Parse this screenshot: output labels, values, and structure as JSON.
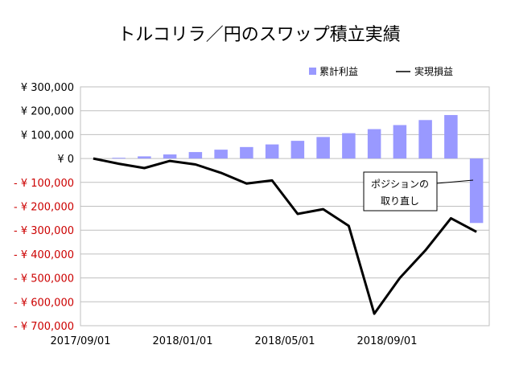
{
  "chart_data": {
    "type": "bar",
    "title": "トルコリラ／円のスワップ積立実績",
    "xlabel": "",
    "ylabel": "",
    "ylim": [
      -700000,
      300000
    ],
    "yticks": [
      300000,
      200000,
      100000,
      0,
      -100000,
      -200000,
      -300000,
      -400000,
      -500000,
      -600000,
      -700000
    ],
    "ytick_labels": [
      "¥ 300,000",
      "¥ 200,000",
      "¥ 100,000",
      "¥ 0",
      "- ¥ 100,000",
      "- ¥ 200,000",
      "- ¥ 300,000",
      "- ¥ 400,000",
      "- ¥ 500,000",
      "- ¥ 600,000",
      "- ¥ 700,000"
    ],
    "negative_tick_color": "#cc0000",
    "positive_tick_color": "#000000",
    "xtick_labels": [
      {
        "label": "2017/09/01",
        "index": 0
      },
      {
        "label": "2018/01/01",
        "index": 4
      },
      {
        "label": "2018/05/01",
        "index": 8
      },
      {
        "label": "2018/09/01",
        "index": 12
      }
    ],
    "x": [
      "2017/09",
      "2017/10",
      "2017/11",
      "2017/12",
      "2018/01",
      "2018/02",
      "2018/03",
      "2018/04",
      "2018/05",
      "2018/06",
      "2018/07",
      "2018/08",
      "2018/09",
      "2018/10",
      "2018/11",
      "2018/12"
    ],
    "series": [
      {
        "name": "累計利益",
        "type": "bar",
        "color": "#9999ff",
        "values": [
          0,
          3000,
          9000,
          17000,
          27000,
          37000,
          48000,
          59000,
          74000,
          90000,
          106000,
          123000,
          140000,
          161000,
          182000,
          -270000
        ]
      },
      {
        "name": "実現損益",
        "type": "line",
        "color": "#000000",
        "values": [
          0,
          -22000,
          -40000,
          -10000,
          -25000,
          -60000,
          -105000,
          -92000,
          -232000,
          -212000,
          -282000,
          -650000,
          -500000,
          -385000,
          -250000,
          -307000
        ]
      }
    ],
    "annotation": {
      "lines": [
        "ポジションの",
        "取り直し"
      ],
      "index": 15
    },
    "legend_position": "top-right",
    "grid": true
  }
}
